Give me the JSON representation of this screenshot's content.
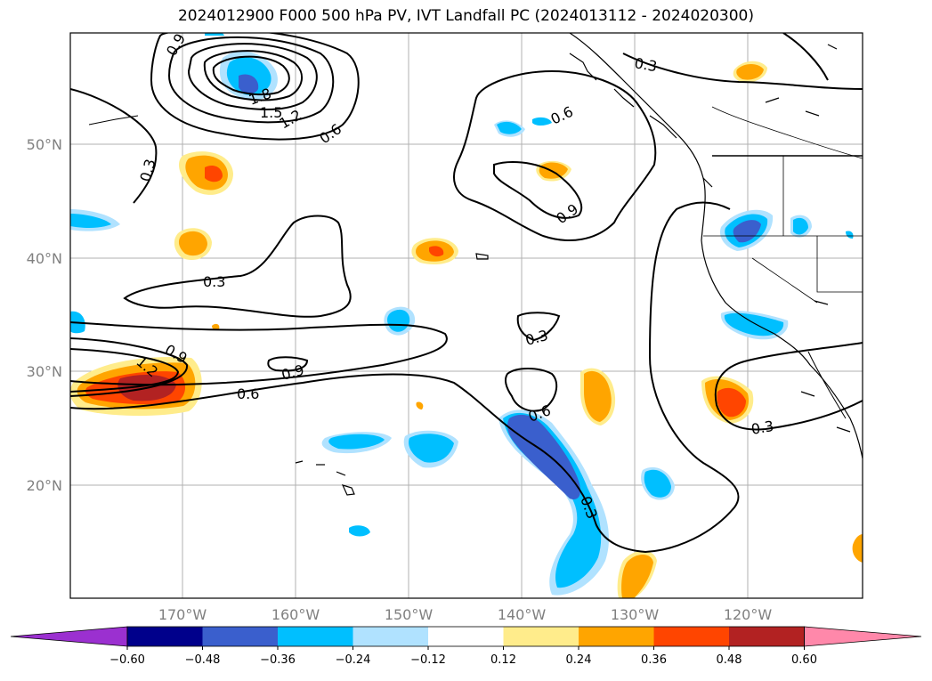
{
  "title": "2024012900 F000 500 hPa PV, IVT Landfall PC (2024013112 - 2024020300)",
  "lat_labels": [
    "50°N",
    "40°N",
    "30°N",
    "20°N"
  ],
  "lon_labels": [
    "170°W",
    "160°W",
    "150°W",
    "140°W",
    "130°W",
    "120°W"
  ],
  "contour_labels": [
    "0.9",
    "1.8",
    "1.5",
    "1.2",
    "0.6",
    "0.3",
    "0.3",
    "0.6",
    "0.9",
    "0.3",
    "0.9",
    "1.2",
    "0.9",
    "0.6",
    "0.3",
    "0.6",
    "0.3",
    "0.3"
  ],
  "colorbar": {
    "ticks": [
      "−0.60",
      "−0.48",
      "−0.36",
      "−0.24",
      "−0.12",
      "0.12",
      "0.24",
      "0.36",
      "0.48",
      "0.60"
    ],
    "colors": [
      "#9b30d0",
      "#00008b",
      "#3a5fcd",
      "#00bfff",
      "#b0e2ff",
      "#ffffff",
      "#ffec8b",
      "#ffa500",
      "#ff4500",
      "#b22222",
      "#ff88aa"
    ]
  }
}
